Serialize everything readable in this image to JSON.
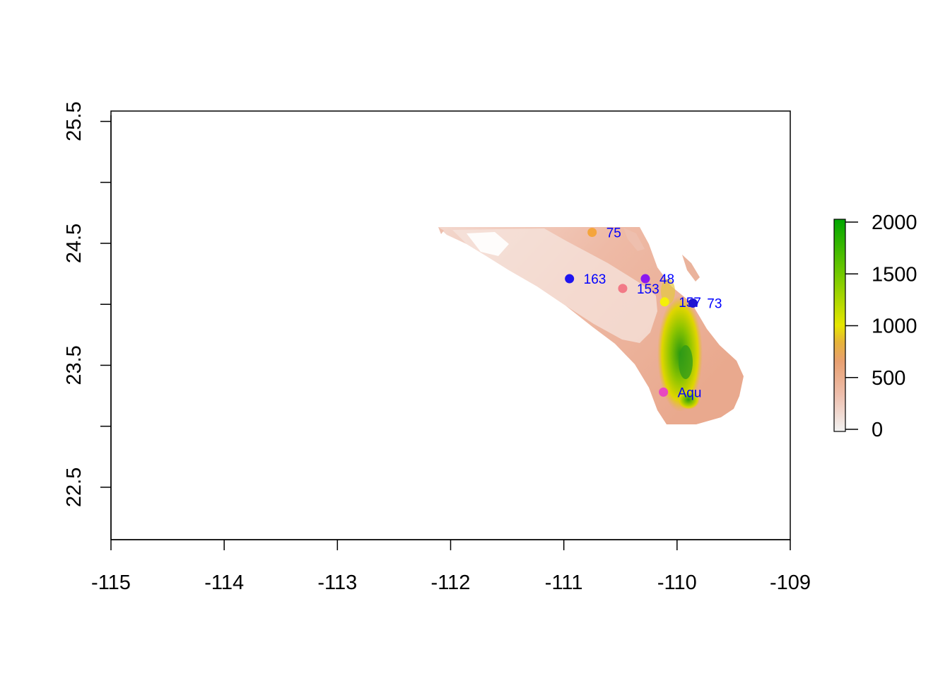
{
  "x_axis": {
    "range": [
      -115,
      -109
    ],
    "ticks": [
      {
        "value": -115,
        "label": "-115"
      },
      {
        "value": -114,
        "label": "-114"
      },
      {
        "value": -113,
        "label": "-113"
      },
      {
        "value": -112,
        "label": "-112"
      },
      {
        "value": -111,
        "label": "-111"
      },
      {
        "value": -110,
        "label": "-110"
      },
      {
        "value": -109,
        "label": "-109"
      }
    ]
  },
  "y_axis": {
    "range": [
      22.07,
      25.55
    ],
    "ticks": [
      {
        "value": 22.5,
        "label": "22.5"
      },
      {
        "value": 23.0,
        "label": ""
      },
      {
        "value": 23.5,
        "label": "23.5"
      },
      {
        "value": 24.0,
        "label": ""
      },
      {
        "value": 24.5,
        "label": "24.5"
      },
      {
        "value": 25.0,
        "label": ""
      },
      {
        "value": 25.5,
        "label": "25.5"
      }
    ]
  },
  "legend": {
    "range": [
      0,
      2000
    ],
    "ticks": [
      {
        "value": 0,
        "label": "0"
      },
      {
        "value": 500,
        "label": "500"
      },
      {
        "value": 1000,
        "label": "1000"
      },
      {
        "value": 1500,
        "label": "1500"
      },
      {
        "value": 2000,
        "label": "2000"
      }
    ],
    "colors": [
      "#f2f2f2",
      "#eebfae",
      "#e8a071",
      "#e6b33a",
      "#e6e600",
      "#6fc800",
      "#00a600"
    ]
  },
  "points": [
    {
      "label": "75",
      "lon": -110.75,
      "lat": 24.59,
      "color": "#f5a53c"
    },
    {
      "label": "163",
      "lon": -110.95,
      "lat": 24.21,
      "color": "#1f14f0"
    },
    {
      "label": "48",
      "lon": -110.28,
      "lat": 24.21,
      "color": "#8a18f0"
    },
    {
      "label": "153",
      "lon": -110.48,
      "lat": 24.13,
      "color": "#f27a87"
    },
    {
      "label": "157",
      "lon": -110.11,
      "lat": 24.02,
      "color": "#f5f00a"
    },
    {
      "label": "73",
      "lon": -109.86,
      "lat": 24.01,
      "color": "#1f14d2"
    },
    {
      "label": "Aqu",
      "lon": -110.12,
      "lat": 23.28,
      "color": "#e848c0"
    }
  ]
}
